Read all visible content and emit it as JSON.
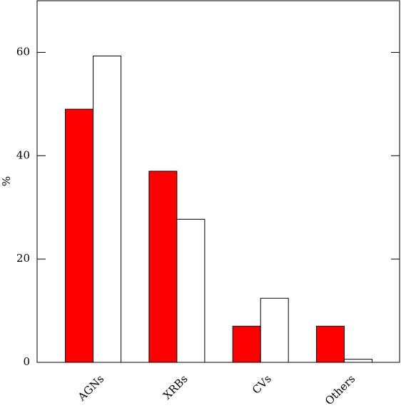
{
  "chart_data": {
    "type": "bar",
    "y_label": "%",
    "categories": [
      "AGNs",
      "XRBs",
      "CVs",
      "Others"
    ],
    "series": [
      {
        "color": "#ff0000",
        "values": [
          49,
          37,
          7,
          7
        ]
      },
      {
        "color": "#ffffff",
        "values": [
          59.3,
          27.7,
          12.4,
          0.6
        ]
      }
    ],
    "ylim": [
      0,
      70
    ],
    "yticks": [
      0,
      20,
      40,
      60
    ]
  }
}
